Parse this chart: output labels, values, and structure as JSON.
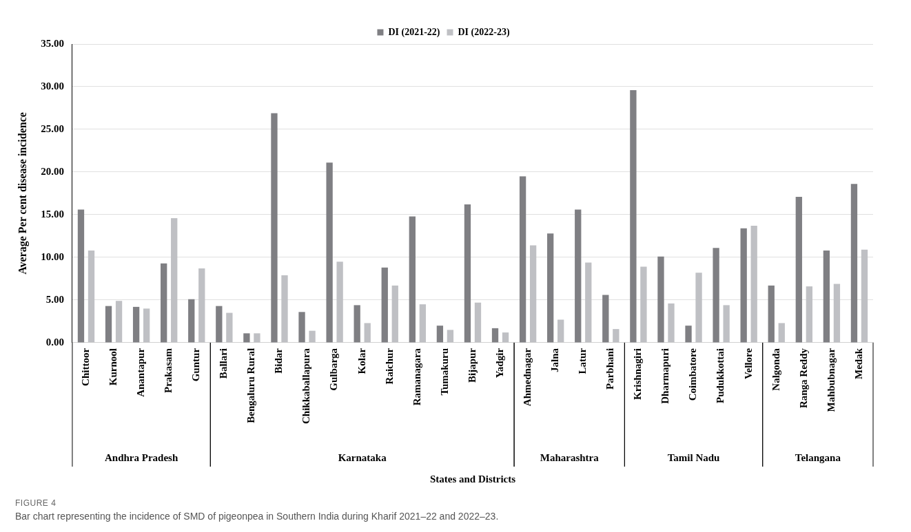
{
  "chart_data": {
    "type": "bar",
    "xlabel": "States and Districts",
    "ylabel": "Average Per cent disease incidence",
    "categories": [
      "Chittoor",
      "Kurnool",
      "Anantapur",
      "Prakasam",
      "Guntur",
      "Ballari",
      "Bengaluru Rural",
      "Bidar",
      "Chikkaballapura",
      "Gulbarga",
      "Kolar",
      "Raichur",
      "Ramanagara",
      "Tumakuru",
      "Bijapur",
      "Yadgir",
      "Ahmednagar",
      "Jalna",
      "Latur",
      "Parbhani",
      "Krishnagiri",
      "Dharmapuri",
      "Coimbatore",
      "Pudukkottai",
      "Vellore",
      "Nalgonda",
      "Ranga Reddy",
      "Mahbubnagar",
      "Medak"
    ],
    "series": [
      {
        "name": "DI (2021-22)",
        "color": "#7f7f83",
        "values": [
          15.6,
          4.3,
          4.2,
          9.3,
          5.1,
          4.3,
          1.1,
          26.9,
          3.6,
          21.1,
          4.4,
          8.8,
          14.8,
          2.0,
          16.2,
          1.7,
          19.5,
          12.8,
          15.6,
          5.6,
          29.6,
          10.1,
          2.0,
          11.1,
          13.4,
          6.7,
          17.1,
          10.8,
          18.6
        ]
      },
      {
        "name": "DI (2022-23)",
        "color": "#bfc0c4",
        "values": [
          10.8,
          4.9,
          4.0,
          14.6,
          8.7,
          3.5,
          1.1,
          7.9,
          1.4,
          9.5,
          2.3,
          6.7,
          4.5,
          1.5,
          4.7,
          1.2,
          11.4,
          2.7,
          9.4,
          1.6,
          8.9,
          4.6,
          8.2,
          4.4,
          13.7,
          2.3,
          6.6,
          6.9,
          10.9
        ]
      }
    ],
    "ylim": [
      0,
      35
    ],
    "yticks": [
      {
        "value": 0,
        "label": "0.00"
      },
      {
        "value": 5,
        "label": "5.00"
      },
      {
        "value": 10,
        "label": "10.00"
      },
      {
        "value": 15,
        "label": "15.00"
      },
      {
        "value": 20,
        "label": "20.00"
      },
      {
        "value": 25,
        "label": "25.00"
      },
      {
        "value": 30,
        "label": "30.00"
      },
      {
        "value": 35,
        "label": "35.00"
      }
    ],
    "grid": "y",
    "legend": "top",
    "annotations": [
      "Andhra Pradesh",
      "Karnataka",
      "Maharashtra",
      "Tamil Nadu",
      "Telangana",
      "FIGURE 4",
      "Bar chart representing the incidence of SMD of pigeonpea in Southern India during Kharif 2021–22 and 2022–23."
    ]
  }
}
